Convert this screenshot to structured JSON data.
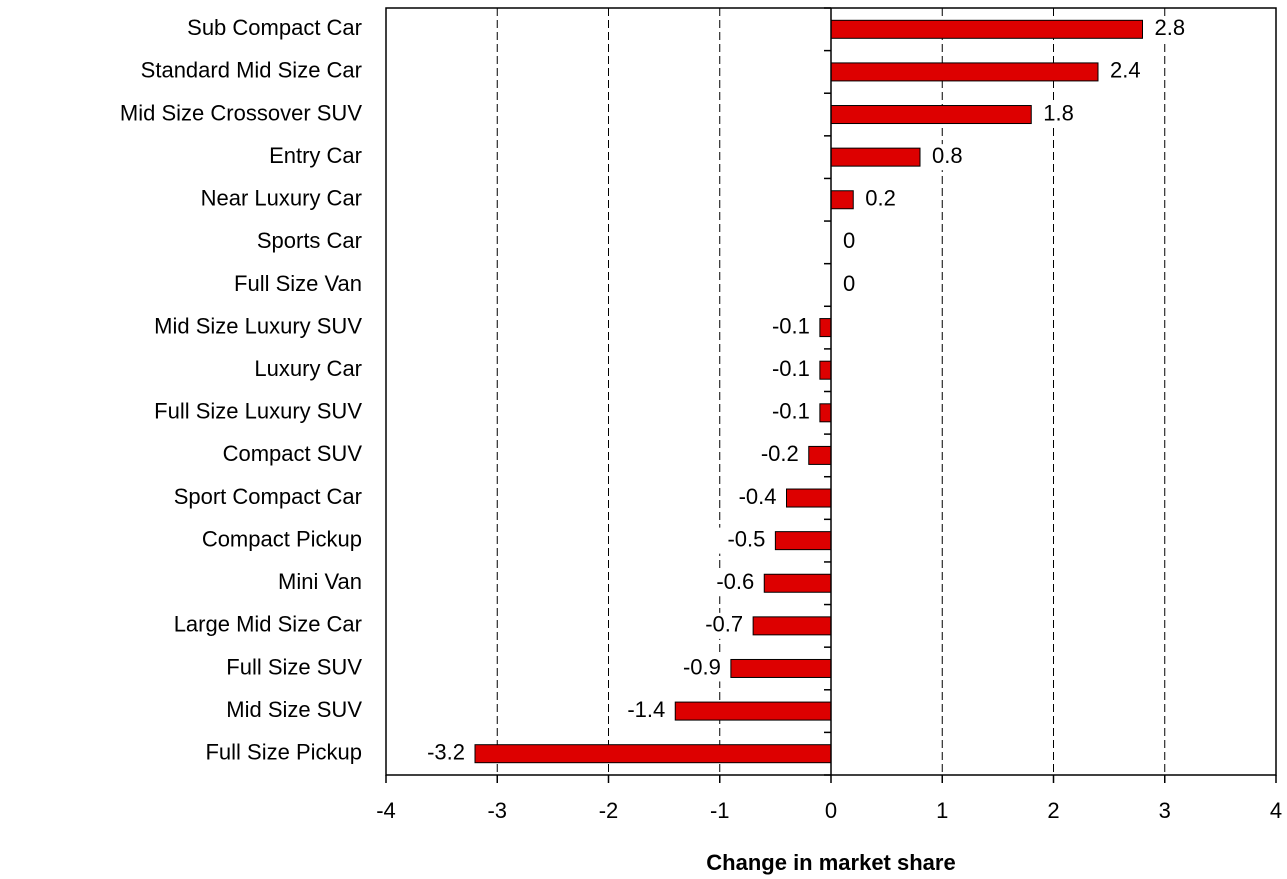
{
  "chart_data": {
    "type": "bar",
    "orientation": "horizontal",
    "x_label": "Change in market share",
    "categories": [
      "Sub Compact Car",
      "Standard Mid Size Car",
      "Mid Size Crossover SUV",
      "Entry Car",
      "Near Luxury Car",
      "Sports Car",
      "Full Size Van",
      "Mid Size Luxury SUV",
      "Luxury Car",
      "Full Size Luxury SUV",
      "Compact SUV",
      "Sport Compact Car",
      "Compact Pickup",
      "Mini Van",
      "Large Mid Size Car",
      "Full Size SUV",
      "Mid Size SUV",
      "Full Size Pickup"
    ],
    "values": [
      2.8,
      2.4,
      1.8,
      0.8,
      0.2,
      0,
      0,
      -0.1,
      -0.1,
      -0.1,
      -0.2,
      -0.4,
      -0.5,
      -0.6,
      -0.7,
      -0.9,
      -1.4,
      -3.2
    ],
    "color": "#dd0000",
    "xlim": [
      -4,
      4
    ],
    "xticks": [
      -4,
      -3,
      -2,
      -1,
      0,
      1,
      2,
      3,
      4
    ],
    "grid": true
  }
}
